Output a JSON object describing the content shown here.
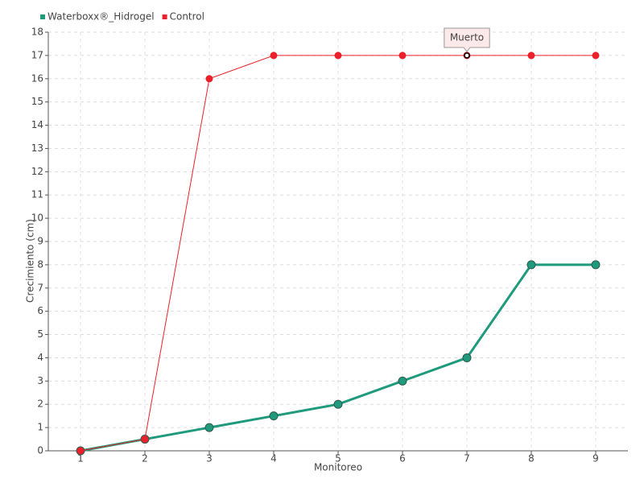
{
  "chart_data": {
    "type": "line",
    "x_label": "Monitoreo",
    "y_label": "Crecimiento (cm)",
    "categories": [
      "1",
      "2",
      "3",
      "4",
      "5",
      "6",
      "7",
      "8",
      "9"
    ],
    "series": [
      {
        "name": "Waterboxx®_Hidrogel",
        "color": "#1f9a7c",
        "values": [
          0,
          0.5,
          1,
          1.5,
          2,
          3,
          4,
          8,
          8
        ]
      },
      {
        "name": "Control",
        "color": "#e8212a",
        "values": [
          0,
          0.5,
          16,
          17,
          17,
          17,
          17,
          17,
          17
        ]
      }
    ],
    "annotations": [
      "Muerto"
    ],
    "ylim": [
      0,
      18
    ],
    "yticks": [
      0,
      1,
      2,
      3,
      4,
      5,
      6,
      7,
      8,
      9,
      10,
      11,
      12,
      13,
      14,
      15,
      16,
      17,
      18
    ],
    "grid": true,
    "legend": "top-left"
  }
}
